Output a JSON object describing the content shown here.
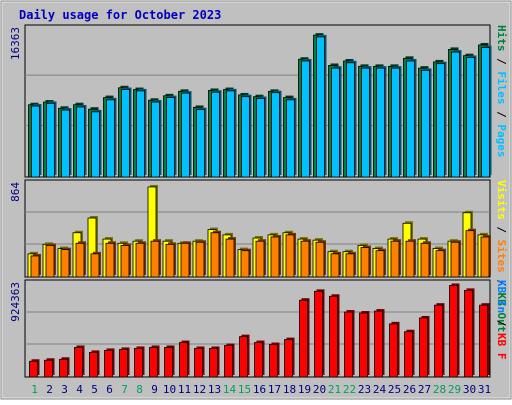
{
  "chart_data": {
    "type": "bar",
    "title": "Daily usage for October 2023",
    "categories": [
      "1",
      "2",
      "3",
      "4",
      "5",
      "6",
      "7",
      "8",
      "9",
      "10",
      "11",
      "12",
      "13",
      "14",
      "15",
      "16",
      "17",
      "18",
      "19",
      "20",
      "21",
      "22",
      "23",
      "24",
      "25",
      "26",
      "27",
      "28",
      "29",
      "30",
      "31"
    ],
    "weekend_days": [
      "1",
      "7",
      "8",
      "14",
      "15",
      "21",
      "22",
      "28",
      "29"
    ],
    "panels": [
      {
        "id": "hits",
        "ytick": "16363",
        "ymax": 16363,
        "series": [
          {
            "name": "Hits",
            "color": "#008040",
            "values": [
              8100,
              8400,
              7700,
              8100,
              7600,
              8900,
              10000,
              9800,
              8600,
              9100,
              9600,
              7800,
              9700,
              9800,
              9200,
              9000,
              9600,
              8900,
              13200,
              15900,
              12500,
              13000,
              12400,
              12400,
              12400,
              13300,
              12200,
              12900,
              14300,
              13600,
              14800
            ]
          },
          {
            "name": "Files",
            "color": "#00c0ff",
            "values": [
              7950,
              8250,
              7500,
              7850,
              7300,
              8650,
              9800,
              9650,
              8400,
              8900,
              9400,
              7550,
              9500,
              9650,
              9000,
              8800,
              9450,
              8650,
              13000,
              15700,
              12200,
              12800,
              12200,
              12200,
              12200,
              13000,
              11950,
              12700,
              14000,
              13400,
              14500
            ]
          },
          {
            "name": "Pages",
            "color": "#00c0ff",
            "values": []
          }
        ]
      },
      {
        "id": "visits",
        "ytick": "864",
        "ymax": 864,
        "series": [
          {
            "name": "Visits",
            "color": "#ffff00",
            "values": [
              220,
              310,
              270,
              420,
              560,
              360,
              320,
              340,
              855,
              340,
              320,
              340,
              450,
              400,
              260,
              370,
              400,
              420,
              360,
              350,
              240,
              240,
              300,
              270,
              360,
              510,
              360,
              270,
              340,
              610,
              400
            ]
          },
          {
            "name": "Sites",
            "color": "#ff8000",
            "values": [
              200,
              300,
              260,
              320,
              220,
              320,
              300,
              320,
              340,
              310,
              320,
              330,
              420,
              360,
              250,
              340,
              380,
              400,
              340,
              330,
              220,
              220,
              280,
              250,
              340,
              340,
              320,
              250,
              330,
              440,
              380
            ]
          }
        ]
      },
      {
        "id": "kbytes",
        "ytick": "924363",
        "ymax": 924363,
        "series": [
          {
            "name": "KBytes",
            "color": "#ff0000",
            "values": [
              160000,
              170000,
              180000,
              300000,
              250000,
              270000,
              280000,
              290000,
              300000,
              300000,
              350000,
              290000,
              290000,
              320000,
              410000,
              350000,
              330000,
              380000,
              780000,
              870000,
              820000,
              660000,
              650000,
              670000,
              540000,
              460000,
              600000,
              730000,
              930000,
              880000,
              730000
            ]
          }
        ]
      }
    ],
    "right_labels": {
      "hits": [
        {
          "text": "Hits",
          "color": "#008040"
        },
        {
          "text": "Files",
          "color": "#00c0ff"
        },
        {
          "text": "Pages",
          "color": "#00c0ff"
        }
      ],
      "visits": [
        {
          "text": "Visits",
          "color": "#ffff00"
        },
        {
          "text": "Sites",
          "color": "#ff8000"
        },
        {
          "text": "KB Out",
          "color": "#008040"
        }
      ],
      "kbytes": [
        {
          "text": "KB In",
          "color": "#0080ff"
        },
        {
          "text": "KB F",
          "color": "#ff0000"
        }
      ]
    },
    "right_separator": " / ",
    "grid": true,
    "colors": {
      "background": "#ffffff",
      "frame": "#c0c0c0",
      "plot": "#bfbfbf",
      "title": "#0000c0",
      "axis_text": "#000080",
      "weekend_text": "#00a060"
    }
  }
}
